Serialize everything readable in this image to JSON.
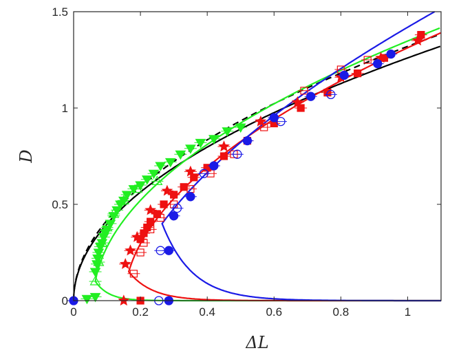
{
  "chart_data": {
    "type": "scatter",
    "xlabel": "ΔL",
    "ylabel": "D",
    "xlim": [
      0,
      1.1
    ],
    "ylim": [
      0,
      1.5
    ],
    "xticks": [
      0,
      0.2,
      0.4,
      0.6,
      0.8,
      1
    ],
    "xtick_labels": [
      "0",
      "0.2",
      "0.4",
      "0.6",
      "0.8",
      "1"
    ],
    "yticks": [
      0,
      0.5,
      1,
      1.5
    ],
    "ytick_labels": [
      "0",
      "0.5",
      "1",
      "1.5"
    ],
    "grid": false,
    "colors": {
      "green": "#22ee22",
      "red": "#ee1111",
      "blue": "#1a1ae6",
      "black": "#000000"
    },
    "curves": [
      {
        "color": "black",
        "dashed": false,
        "offset": 0.0,
        "upper_coef": 1.26,
        "upper_exp": 0.5
      },
      {
        "color": "black",
        "dashed": true,
        "offset": 0.0,
        "upper_coef": 1.32,
        "upper_exp": 0.5
      },
      {
        "color": "green",
        "dashed": false,
        "offset": 0.065,
        "dmin": 0.1,
        "upper_coef": 1.39,
        "upper_exp": 0.5,
        "lower_scale": 0.04
      },
      {
        "color": "red",
        "dashed": false,
        "offset": 0.165,
        "dmin": 0.15,
        "upper_coef": 1.43,
        "upper_exp": 0.52,
        "lower_scale": 0.07
      },
      {
        "color": "blue",
        "dashed": false,
        "offset": 0.265,
        "dmin": 0.4,
        "upper_coef": 1.58,
        "upper_exp": 0.6,
        "lower_scale": 0.09
      }
    ],
    "series": [
      {
        "color": "green",
        "marker": "triangle-down",
        "filled": true,
        "x": [
          0.065,
          0.07,
          0.072,
          0.075,
          0.08,
          0.085,
          0.09,
          0.095,
          0.1,
          0.11,
          0.12,
          0.13,
          0.14,
          0.15,
          0.16,
          0.18,
          0.2,
          0.22,
          0.24,
          0.26,
          0.29,
          0.32,
          0.35,
          0.38,
          0.42,
          0.46,
          0.5,
          0.04,
          0.065
        ],
        "y": [
          0.15,
          0.19,
          0.22,
          0.25,
          0.28,
          0.3,
          0.33,
          0.35,
          0.37,
          0.4,
          0.44,
          0.47,
          0.5,
          0.52,
          0.55,
          0.58,
          0.6,
          0.63,
          0.66,
          0.7,
          0.72,
          0.76,
          0.79,
          0.82,
          0.84,
          0.88,
          0.9,
          0.01,
          0.02
        ]
      },
      {
        "color": "green",
        "marker": "triangle-up",
        "filled": false,
        "x": [
          0.065,
          0.075,
          0.085,
          0.1,
          0.12,
          0.15,
          0.19,
          0.25
        ],
        "y": [
          0.1,
          0.2,
          0.3,
          0.38,
          0.45,
          0.52,
          0.58,
          0.62
        ]
      },
      {
        "color": "red",
        "marker": "star",
        "filled": true,
        "x": [
          0.155,
          0.17,
          0.19,
          0.23,
          0.28,
          0.35,
          0.45,
          0.56,
          0.67,
          0.8,
          0.92,
          1.03,
          0.15
        ],
        "y": [
          0.19,
          0.26,
          0.33,
          0.47,
          0.57,
          0.67,
          0.8,
          0.93,
          1.03,
          1.16,
          1.26,
          1.35,
          0.0
        ]
      },
      {
        "color": "red",
        "marker": "square",
        "filled": true,
        "x": [
          0.2,
          0.21,
          0.22,
          0.23,
          0.25,
          0.27,
          0.3,
          0.33,
          0.36,
          0.4,
          0.45,
          0.52,
          0.6,
          0.68,
          0.76,
          0.85,
          0.93,
          1.04,
          0.2
        ],
        "y": [
          0.32,
          0.35,
          0.38,
          0.41,
          0.45,
          0.5,
          0.55,
          0.59,
          0.64,
          0.69,
          0.75,
          0.83,
          0.92,
          1.0,
          1.08,
          1.18,
          1.26,
          1.38,
          0.0
        ]
      },
      {
        "color": "red",
        "marker": "square",
        "filled": false,
        "x": [
          0.18,
          0.2,
          0.21,
          0.23,
          0.26,
          0.3,
          0.35,
          0.41,
          0.48,
          0.57,
          0.69,
          0.8,
          0.88
        ],
        "y": [
          0.14,
          0.25,
          0.3,
          0.37,
          0.43,
          0.5,
          0.58,
          0.66,
          0.76,
          0.9,
          1.09,
          1.2,
          1.25
        ]
      },
      {
        "color": "blue",
        "marker": "circle",
        "filled": true,
        "x": [
          0.285,
          0.3,
          0.35,
          0.42,
          0.52,
          0.6,
          0.71,
          0.81,
          0.91,
          0.95,
          0.0,
          0.285
        ],
        "y": [
          0.26,
          0.44,
          0.54,
          0.7,
          0.83,
          0.95,
          1.06,
          1.17,
          1.23,
          1.28,
          0.0,
          0.0
        ]
      },
      {
        "color": "blue",
        "marker": "circle",
        "filled": false,
        "x": [
          0.26,
          0.31,
          0.39,
          0.49,
          0.62,
          0.77,
          0.255
        ],
        "y": [
          0.26,
          0.48,
          0.66,
          0.76,
          0.93,
          1.07,
          0.0
        ]
      }
    ]
  }
}
